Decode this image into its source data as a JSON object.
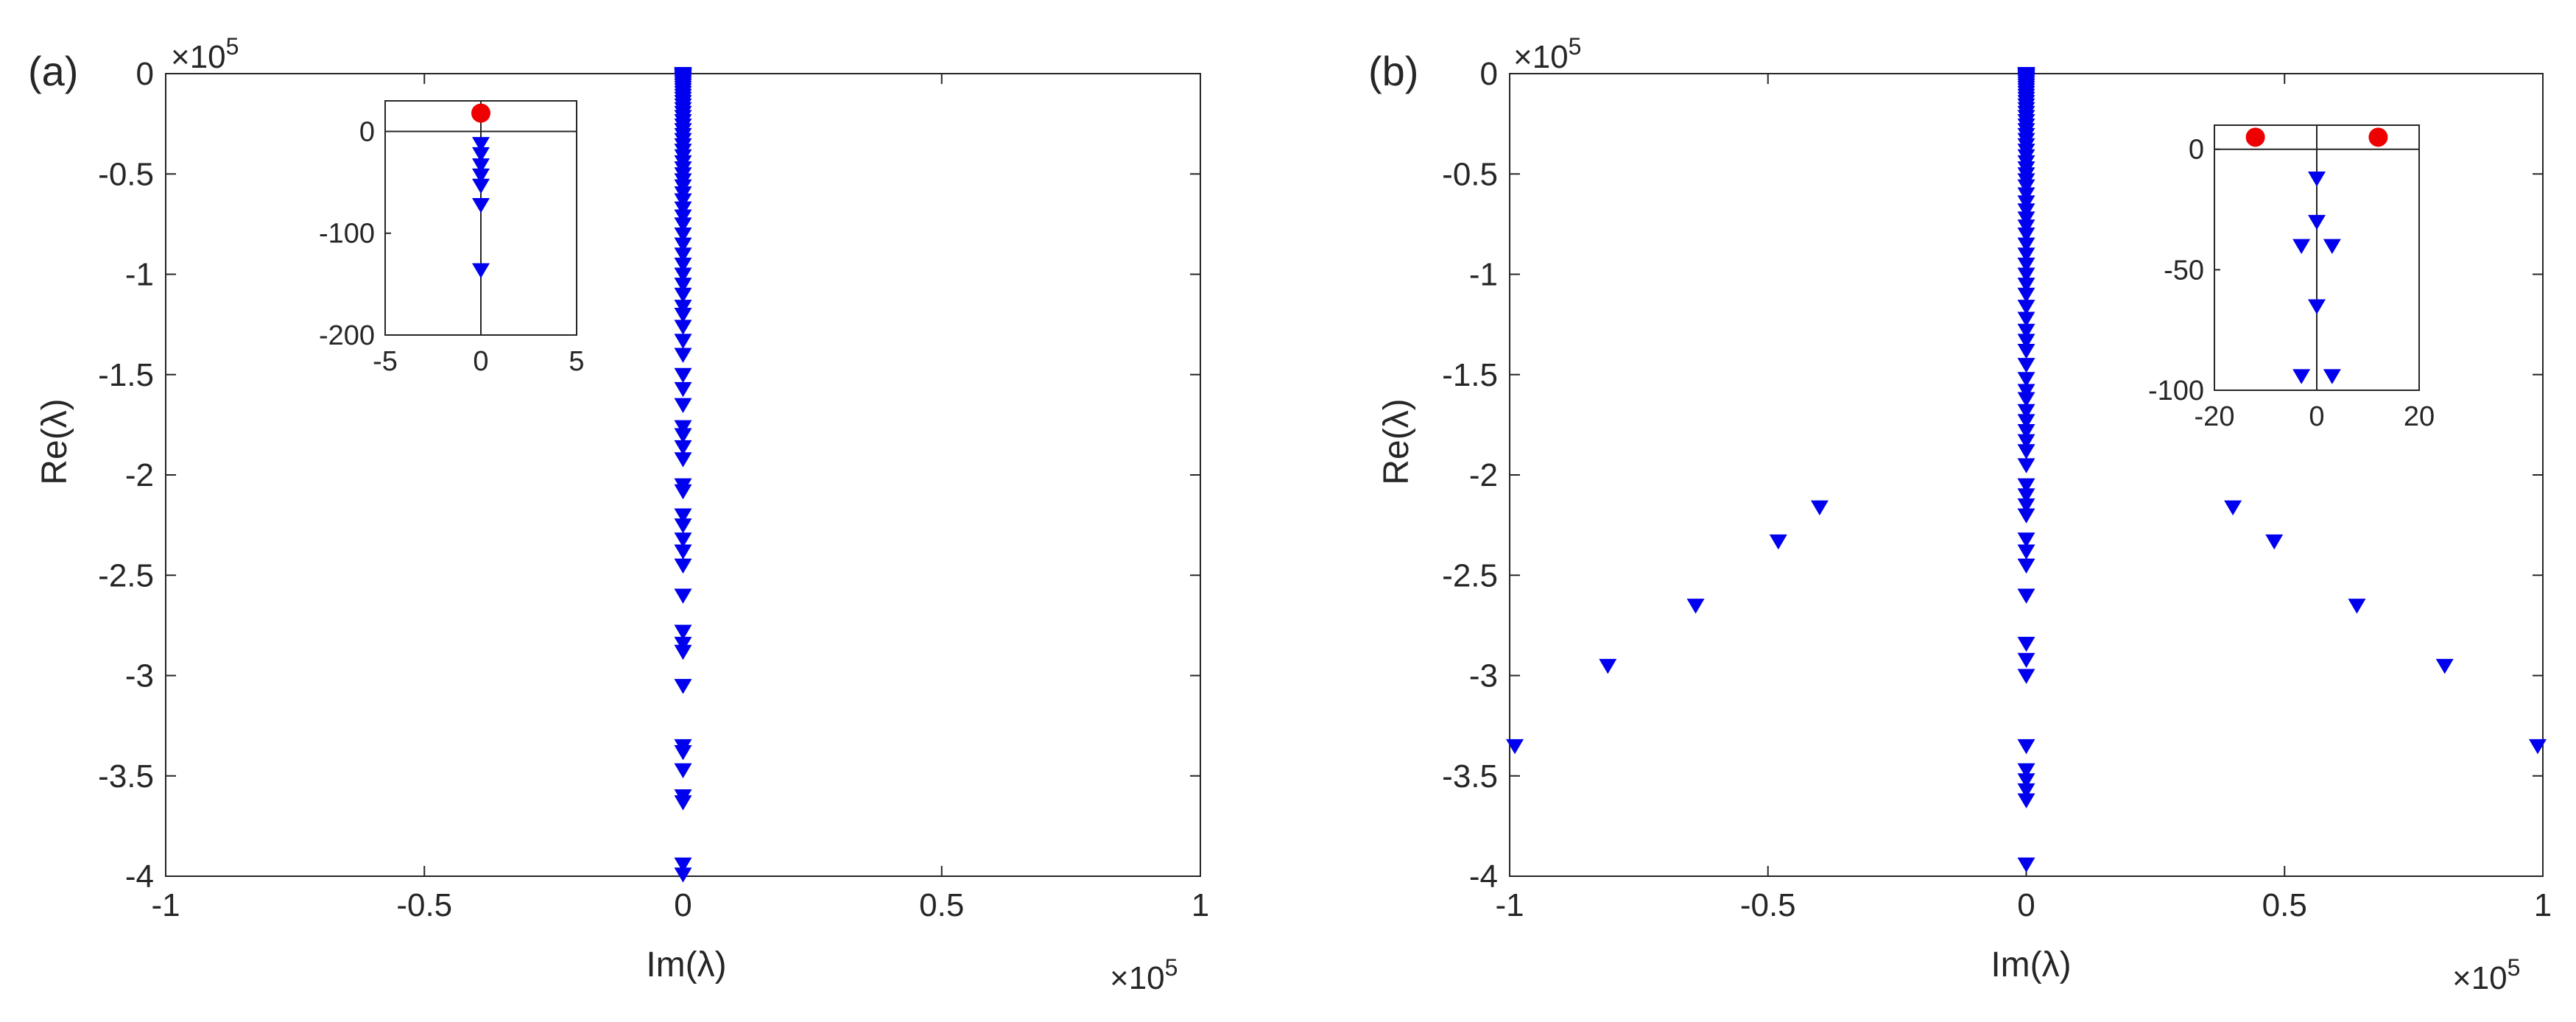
{
  "chart_data": [
    {
      "panel_label": "(a)",
      "type": "scatter",
      "xlabel": "Im(λ)",
      "ylabel": "Re(λ)",
      "xlim": [
        -1,
        1
      ],
      "ylim": [
        -4,
        0
      ],
      "x_multiplier": "×10",
      "x_exponent": "5",
      "y_multiplier": "×10",
      "y_exponent": "5",
      "xticks": [
        -1,
        -0.5,
        0,
        0.5,
        1
      ],
      "xtick_labels": [
        "-1",
        "-0.5",
        "0",
        "0.5",
        "1"
      ],
      "yticks": [
        0,
        -0.5,
        -1,
        -1.5,
        -2,
        -2.5,
        -3,
        -3.5,
        -4
      ],
      "ytick_labels": [
        "0",
        "-0.5",
        "-1",
        "-1.5",
        "-2",
        "-2.5",
        "-3",
        "-3.5",
        "-4"
      ],
      "grid": false,
      "series": [
        {
          "marker": "triangle-down",
          "color": "#0000ee",
          "points": [
            [
              0,
              0
            ],
            [
              0,
              -0.003
            ],
            [
              0,
              -0.006
            ],
            [
              0,
              -0.01
            ],
            [
              0,
              -0.014
            ],
            [
              0,
              -0.019
            ],
            [
              0,
              -0.025
            ],
            [
              0,
              -0.032
            ],
            [
              0,
              -0.04
            ],
            [
              0,
              -0.049
            ],
            [
              0,
              -0.059
            ],
            [
              0,
              -0.07
            ],
            [
              0,
              -0.082
            ],
            [
              0,
              -0.095
            ],
            [
              0,
              -0.109
            ],
            [
              0,
              -0.124
            ],
            [
              0,
              -0.14
            ],
            [
              0,
              -0.157
            ],
            [
              0,
              -0.175
            ],
            [
              0,
              -0.194
            ],
            [
              0,
              -0.214
            ],
            [
              0,
              -0.235
            ],
            [
              0,
              -0.257
            ],
            [
              0,
              -0.28
            ],
            [
              0,
              -0.304
            ],
            [
              0,
              -0.329
            ],
            [
              0,
              -0.355
            ],
            [
              0,
              -0.382
            ],
            [
              0,
              -0.41
            ],
            [
              0,
              -0.44
            ],
            [
              0,
              -0.47
            ],
            [
              0,
              -0.5
            ],
            [
              0,
              -0.53
            ],
            [
              0,
              -0.56
            ],
            [
              0,
              -0.595
            ],
            [
              0,
              -0.63
            ],
            [
              0,
              -0.67
            ],
            [
              0,
              -0.71
            ],
            [
              0,
              -0.75
            ],
            [
              0,
              -0.8
            ],
            [
              0,
              -0.85
            ],
            [
              0,
              -0.9
            ],
            [
              0,
              -0.95
            ],
            [
              0,
              -1.0
            ],
            [
              0,
              -1.05
            ],
            [
              0,
              -1.1
            ],
            [
              0,
              -1.16
            ],
            [
              0,
              -1.2
            ],
            [
              0,
              -1.26
            ],
            [
              0,
              -1.33
            ],
            [
              0,
              -1.4
            ],
            [
              0,
              -1.5
            ],
            [
              0,
              -1.57
            ],
            [
              0,
              -1.65
            ],
            [
              0,
              -1.76
            ],
            [
              0,
              -1.8
            ],
            [
              0,
              -1.86
            ],
            [
              0,
              -1.92
            ],
            [
              0,
              -2.05
            ],
            [
              0,
              -2.08
            ],
            [
              0,
              -2.2
            ],
            [
              0,
              -2.25
            ],
            [
              0,
              -2.32
            ],
            [
              0,
              -2.38
            ],
            [
              0,
              -2.45
            ],
            [
              0,
              -2.6
            ],
            [
              0,
              -2.78
            ],
            [
              0,
              -2.84
            ],
            [
              0,
              -2.88
            ],
            [
              0,
              -3.05
            ],
            [
              0,
              -3.35
            ],
            [
              0,
              -3.38
            ],
            [
              0,
              -3.47
            ],
            [
              0,
              -3.6
            ],
            [
              0,
              -3.63
            ],
            [
              0,
              -3.94
            ],
            [
              0,
              -3.99
            ]
          ]
        }
      ],
      "inset": {
        "xlim": [
          -5,
          5
        ],
        "ylim": [
          -200,
          30
        ],
        "xticks": [
          -5,
          0,
          5
        ],
        "xtick_labels": [
          "-5",
          "0",
          "5"
        ],
        "yticks": [
          0,
          -100,
          -200
        ],
        "ytick_labels": [
          "0",
          "-100",
          "-200"
        ],
        "series": [
          {
            "marker": "circle",
            "color": "#ee0000",
            "points": [
              [
                0,
                18
              ]
            ]
          },
          {
            "marker": "triangle-down",
            "color": "#0000ee",
            "points": [
              [
                0,
                -12
              ],
              [
                0,
                -22
              ],
              [
                0,
                -33
              ],
              [
                0,
                -43
              ],
              [
                0,
                -53
              ],
              [
                0,
                -72
              ],
              [
                0,
                -136
              ]
            ]
          }
        ]
      }
    },
    {
      "panel_label": "(b)",
      "type": "scatter",
      "xlabel": "Im(λ)",
      "ylabel": "Re(λ)",
      "xlim": [
        -1,
        1
      ],
      "ylim": [
        -4,
        0
      ],
      "x_multiplier": "×10",
      "x_exponent": "5",
      "y_multiplier": "×10",
      "y_exponent": "5",
      "xticks": [
        -1,
        -0.5,
        0,
        0.5,
        1
      ],
      "xtick_labels": [
        "-1",
        "-0.5",
        "0",
        "0.5",
        "1"
      ],
      "yticks": [
        0,
        -0.5,
        -1,
        -1.5,
        -2,
        -2.5,
        -3,
        -3.5,
        -4
      ],
      "ytick_labels": [
        "0",
        "-0.5",
        "-1",
        "-1.5",
        "-2",
        "-2.5",
        "-3",
        "-3.5",
        "-4"
      ],
      "grid": false,
      "series": [
        {
          "marker": "triangle-down",
          "color": "#0000ee",
          "points": [
            [
              0,
              0
            ],
            [
              0,
              -0.003
            ],
            [
              0,
              -0.006
            ],
            [
              0,
              -0.01
            ],
            [
              0,
              -0.014
            ],
            [
              0,
              -0.019
            ],
            [
              0,
              -0.025
            ],
            [
              0,
              -0.032
            ],
            [
              0,
              -0.04
            ],
            [
              0,
              -0.049
            ],
            [
              0,
              -0.059
            ],
            [
              0,
              -0.07
            ],
            [
              0,
              -0.082
            ],
            [
              0,
              -0.095
            ],
            [
              0,
              -0.109
            ],
            [
              0,
              -0.124
            ],
            [
              0,
              -0.14
            ],
            [
              0,
              -0.157
            ],
            [
              0,
              -0.175
            ],
            [
              0,
              -0.194
            ],
            [
              0,
              -0.214
            ],
            [
              0,
              -0.235
            ],
            [
              0,
              -0.257
            ],
            [
              0,
              -0.28
            ],
            [
              0,
              -0.304
            ],
            [
              0,
              -0.329
            ],
            [
              0,
              -0.355
            ],
            [
              0,
              -0.382
            ],
            [
              0,
              -0.41
            ],
            [
              0,
              -0.44
            ],
            [
              0,
              -0.47
            ],
            [
              0,
              -0.5
            ],
            [
              0,
              -0.53
            ],
            [
              0,
              -0.56
            ],
            [
              0,
              -0.6
            ],
            [
              0,
              -0.64
            ],
            [
              0,
              -0.68
            ],
            [
              0,
              -0.72
            ],
            [
              0,
              -0.76
            ],
            [
              0,
              -0.8
            ],
            [
              0,
              -0.85
            ],
            [
              0,
              -0.9
            ],
            [
              0,
              -0.95
            ],
            [
              0,
              -1.0
            ],
            [
              0,
              -1.05
            ],
            [
              0,
              -1.1
            ],
            [
              0,
              -1.16
            ],
            [
              0,
              -1.22
            ],
            [
              0,
              -1.28
            ],
            [
              0,
              -1.33
            ],
            [
              0,
              -1.38
            ],
            [
              0,
              -1.45
            ],
            [
              0,
              -1.52
            ],
            [
              0,
              -1.58
            ],
            [
              0,
              -1.62
            ],
            [
              0,
              -1.68
            ],
            [
              0,
              -1.73
            ],
            [
              0,
              -1.78
            ],
            [
              0,
              -1.83
            ],
            [
              0,
              -1.88
            ],
            [
              0,
              -1.95
            ],
            [
              0,
              -2.05
            ],
            [
              0,
              -2.1
            ],
            [
              0,
              -2.15
            ],
            [
              0,
              -2.2
            ],
            [
              0,
              -2.32
            ],
            [
              0,
              -2.38
            ],
            [
              0,
              -2.45
            ],
            [
              0,
              -2.6
            ],
            [
              0,
              -2.84
            ],
            [
              0,
              -2.92
            ],
            [
              0,
              -3.0
            ],
            [
              0,
              -3.35
            ],
            [
              0,
              -3.47
            ],
            [
              0,
              -3.52
            ],
            [
              0,
              -3.57
            ],
            [
              0,
              -3.62
            ],
            [
              0,
              -3.94
            ],
            [
              -0.4,
              -2.16
            ],
            [
              0.4,
              -2.16
            ],
            [
              -0.48,
              -2.33
            ],
            [
              0.48,
              -2.33
            ],
            [
              -0.64,
              -2.65
            ],
            [
              0.64,
              -2.65
            ],
            [
              -0.81,
              -2.95
            ],
            [
              0.81,
              -2.95
            ],
            [
              -0.99,
              -3.35
            ],
            [
              0.99,
              -3.35
            ]
          ]
        }
      ],
      "inset": {
        "xlim": [
          -20,
          20
        ],
        "ylim": [
          -100,
          10
        ],
        "xticks": [
          -20,
          0,
          20
        ],
        "xtick_labels": [
          "-20",
          "0",
          "20"
        ],
        "yticks": [
          0,
          -50,
          -100
        ],
        "ytick_labels": [
          "0",
          "-50",
          "-100"
        ],
        "series": [
          {
            "marker": "circle",
            "color": "#ee0000",
            "points": [
              [
                -12,
                5
              ],
              [
                12,
                5
              ]
            ]
          },
          {
            "marker": "triangle-down",
            "color": "#0000ee",
            "points": [
              [
                0,
                -12
              ],
              [
                0,
                -30
              ],
              [
                -3,
                -40
              ],
              [
                3,
                -40
              ],
              [
                0,
                -65
              ],
              [
                -3,
                -94
              ],
              [
                3,
                -94
              ]
            ]
          }
        ]
      }
    }
  ]
}
